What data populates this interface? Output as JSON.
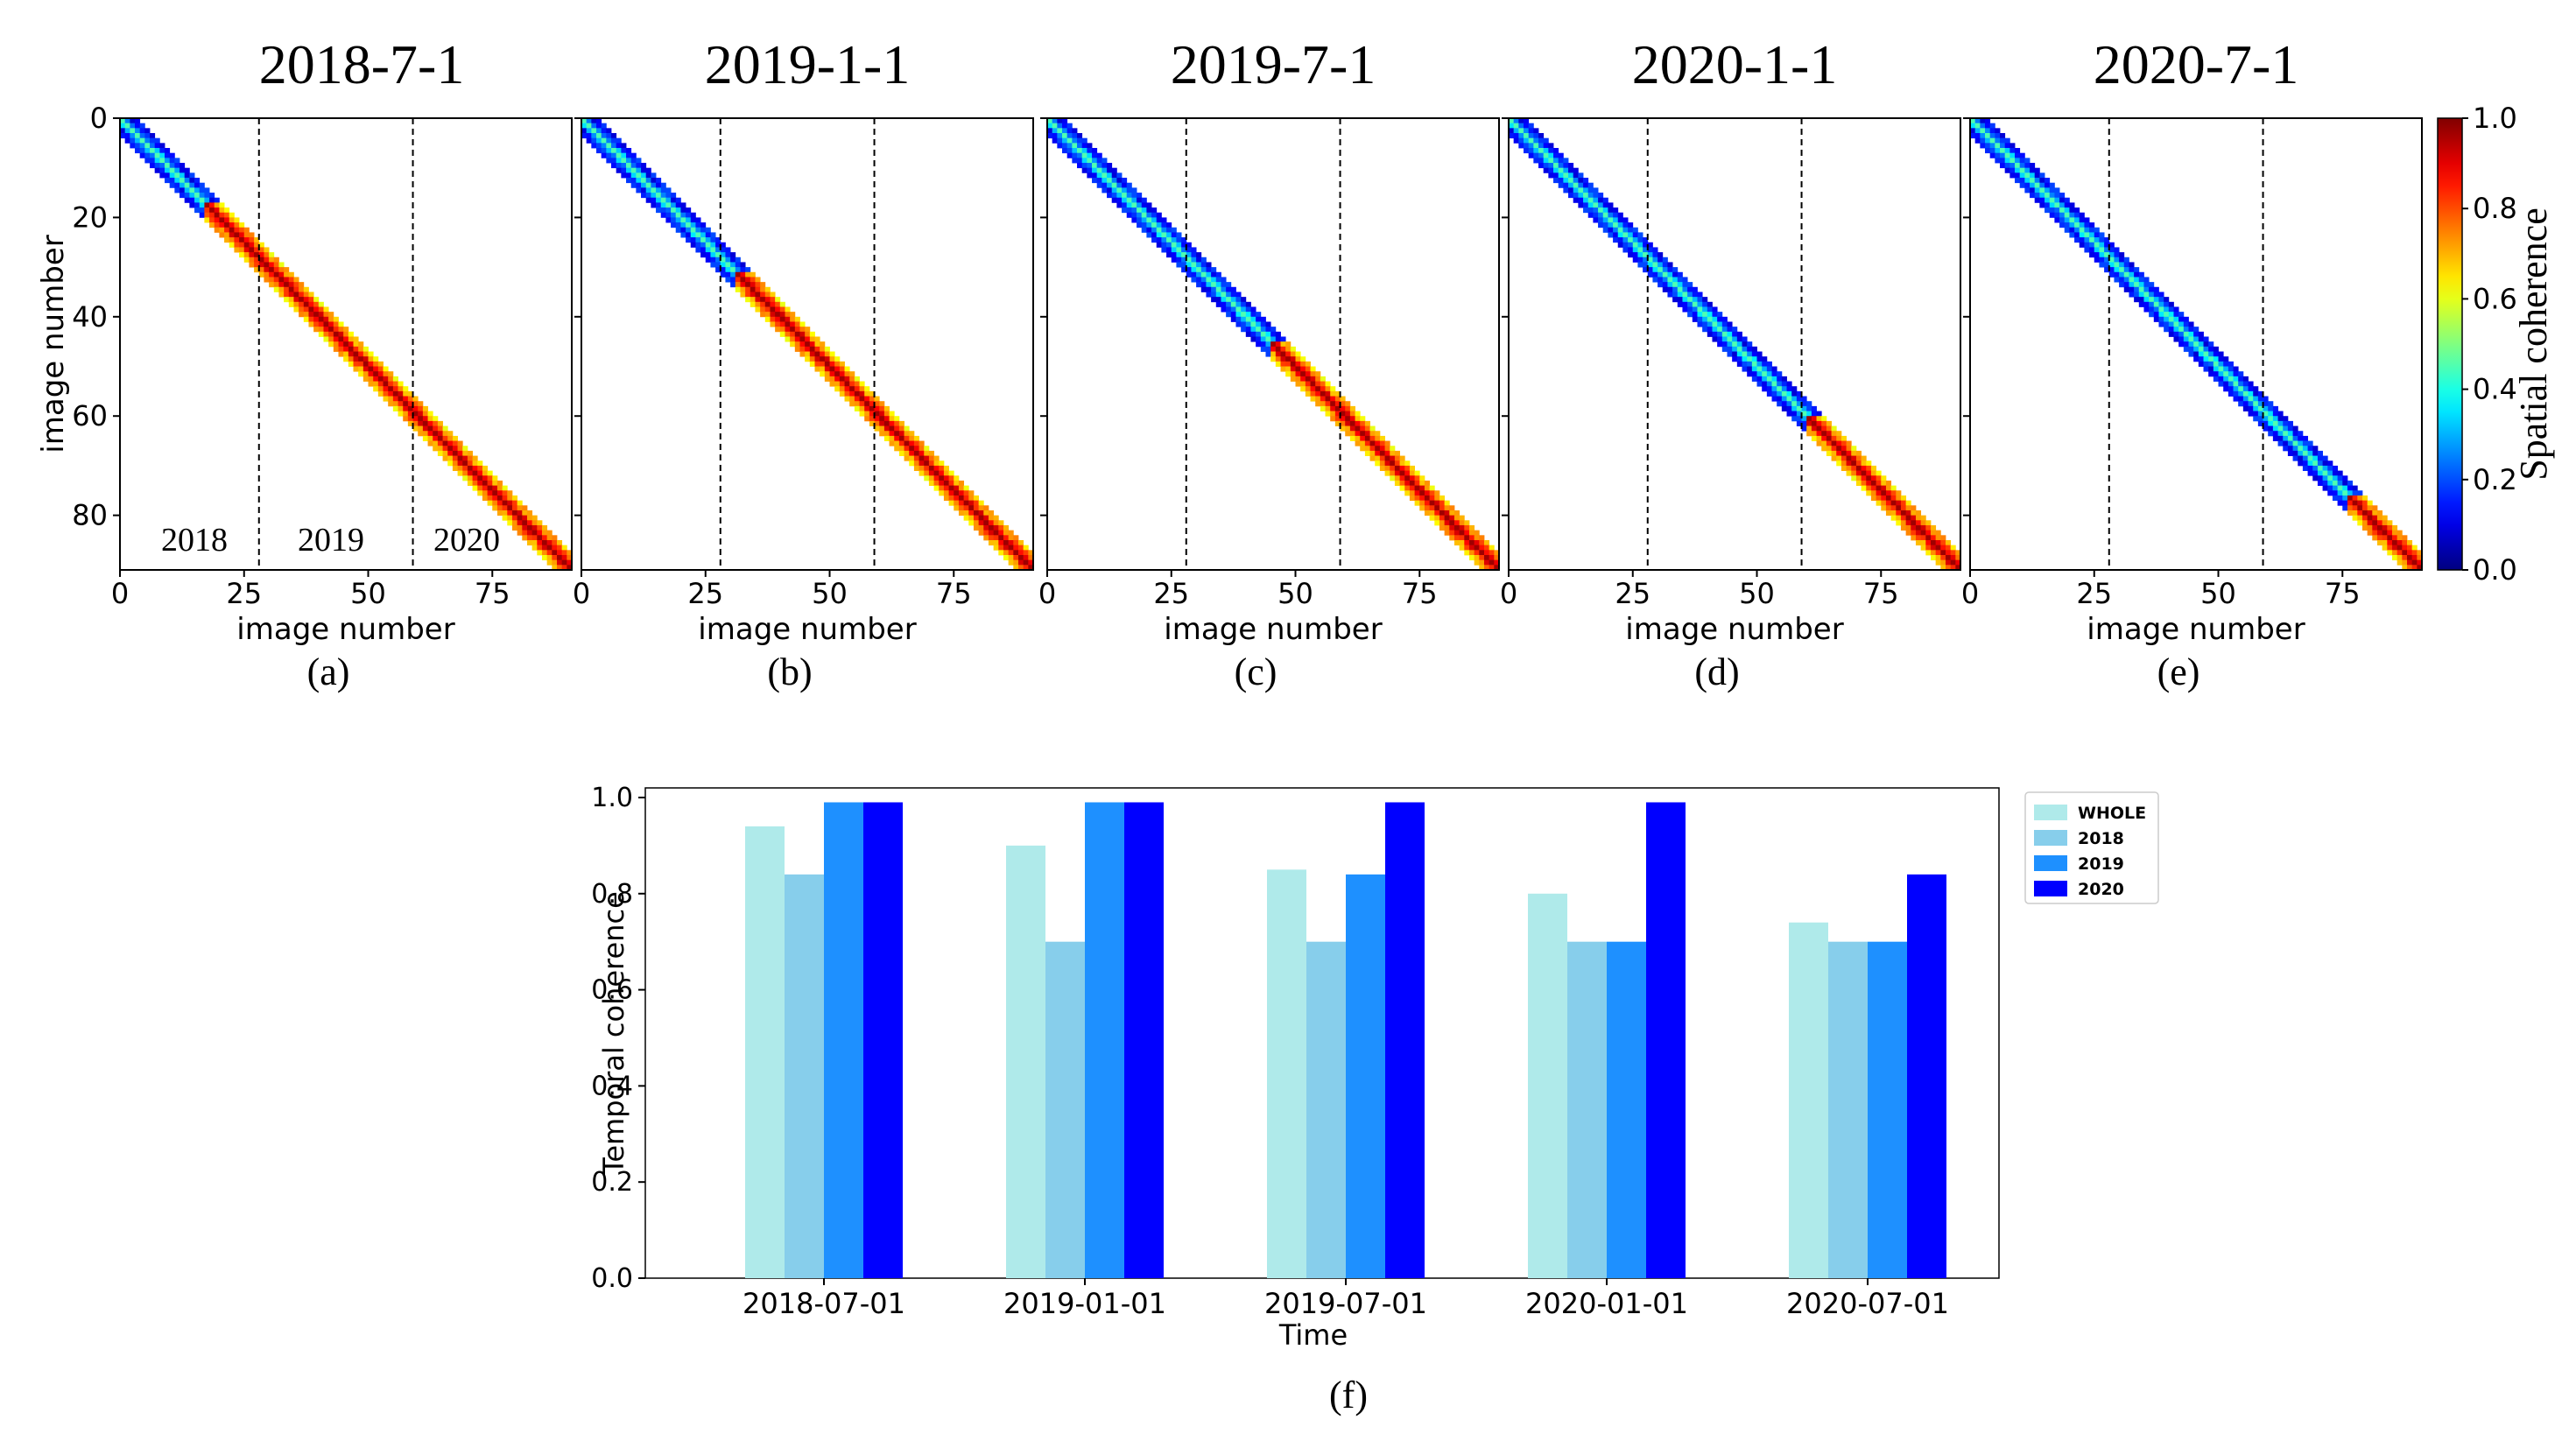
{
  "panels": [
    {
      "title": "2018-7-1",
      "label": "(a)",
      "split": 17,
      "show_year_labels": true
    },
    {
      "title": "2019-1-1",
      "label": "(b)",
      "split": 31,
      "show_year_labels": false
    },
    {
      "title": "2019-7-1",
      "label": "(c)",
      "split": 45,
      "show_year_labels": false
    },
    {
      "title": "2020-1-1",
      "label": "(d)",
      "split": 60,
      "show_year_labels": false
    },
    {
      "title": "2020-7-1",
      "label": "(e)",
      "split": 76,
      "show_year_labels": false
    }
  ],
  "heatmap": {
    "n_images": 91,
    "band_halfwidth": 3,
    "year_boundaries": [
      28,
      59
    ],
    "year_labels": [
      "2018",
      "2019",
      "2020"
    ],
    "xlabel": "image number",
    "ylabel": "image number",
    "xticks": [
      0,
      25,
      50,
      75
    ],
    "yticks": [
      0,
      20,
      40,
      60,
      80
    ],
    "colorbar_label": "Spatial coherence",
    "colorbar_ticks": [
      "0.0",
      "0.2",
      "0.4",
      "0.6",
      "0.8",
      "1.0"
    ],
    "colormap": "jet"
  },
  "chart_data": [
    {
      "type": "heatmap",
      "title": "2018-7-1",
      "xlabel": "image number",
      "ylabel": "image number",
      "xlim": [
        0,
        91
      ],
      "ylim": [
        0,
        91
      ],
      "value_range": [
        0.0,
        1.0
      ],
      "description_values": {
        "band_before_split": "low (~0.1-0.3)",
        "band_after_split": "high (~0.7-0.95)",
        "split_image": 17
      }
    },
    {
      "type": "heatmap",
      "title": "2019-1-1",
      "split_image": 31
    },
    {
      "type": "heatmap",
      "title": "2019-7-1",
      "split_image": 45
    },
    {
      "type": "heatmap",
      "title": "2020-1-1",
      "split_image": 60
    },
    {
      "type": "heatmap",
      "title": "2020-7-1",
      "split_image": 76
    },
    {
      "type": "bar",
      "title": "",
      "label": "(f)",
      "categories": [
        "2018-07-01",
        "2019-01-01",
        "2019-07-01",
        "2020-01-01",
        "2020-07-01"
      ],
      "series": [
        {
          "name": "WHOLE",
          "color": "#afeaea",
          "values": [
            0.94,
            0.9,
            0.85,
            0.8,
            0.74
          ]
        },
        {
          "name": "2018",
          "color": "#87ceeb",
          "values": [
            0.84,
            0.7,
            0.7,
            0.7,
            0.7
          ]
        },
        {
          "name": "2019",
          "color": "#1e90ff",
          "values": [
            0.99,
            0.99,
            0.84,
            0.7,
            0.7
          ]
        },
        {
          "name": "2020",
          "color": "#0000ff",
          "values": [
            0.99,
            0.99,
            0.99,
            0.99,
            0.84
          ]
        }
      ],
      "xlabel": "Time",
      "ylabel": "Temporal coherence",
      "ylim": [
        0.0,
        1.02
      ],
      "yticks": [
        "0.0",
        "0.2",
        "0.4",
        "0.6",
        "0.8",
        "1.0"
      ],
      "legend": "top-right outside"
    }
  ]
}
